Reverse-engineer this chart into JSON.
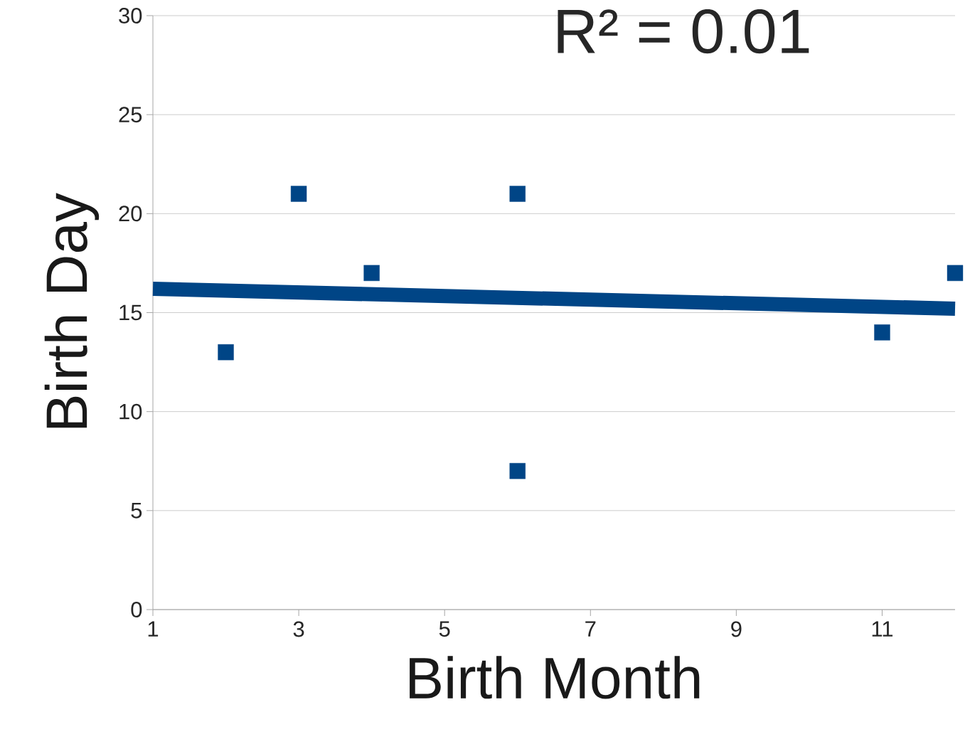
{
  "chart_data": {
    "type": "scatter",
    "xlabel": "Birth Month",
    "ylabel": "Birth Day",
    "annotations": [
      "R² = 0.01"
    ],
    "series": [
      {
        "color": "#004586",
        "marker": "square",
        "x": [
          2,
          3,
          4,
          6,
          6,
          11,
          12
        ],
        "values": [
          13,
          21,
          17,
          21,
          7,
          14,
          17
        ]
      },
      {
        "type": "line",
        "color": "#004586",
        "marker": "none",
        "x": [
          1,
          12
        ],
        "values": [
          16.2,
          15.2
        ]
      }
    ],
    "line_style": "solid",
    "grid": "y",
    "xlim": [
      1,
      12
    ],
    "xticks": [
      1,
      3,
      5,
      7,
      9,
      11
    ],
    "ylim": [
      0,
      30
    ],
    "yticks": [
      0,
      5,
      10,
      15,
      20,
      25,
      30
    ]
  }
}
